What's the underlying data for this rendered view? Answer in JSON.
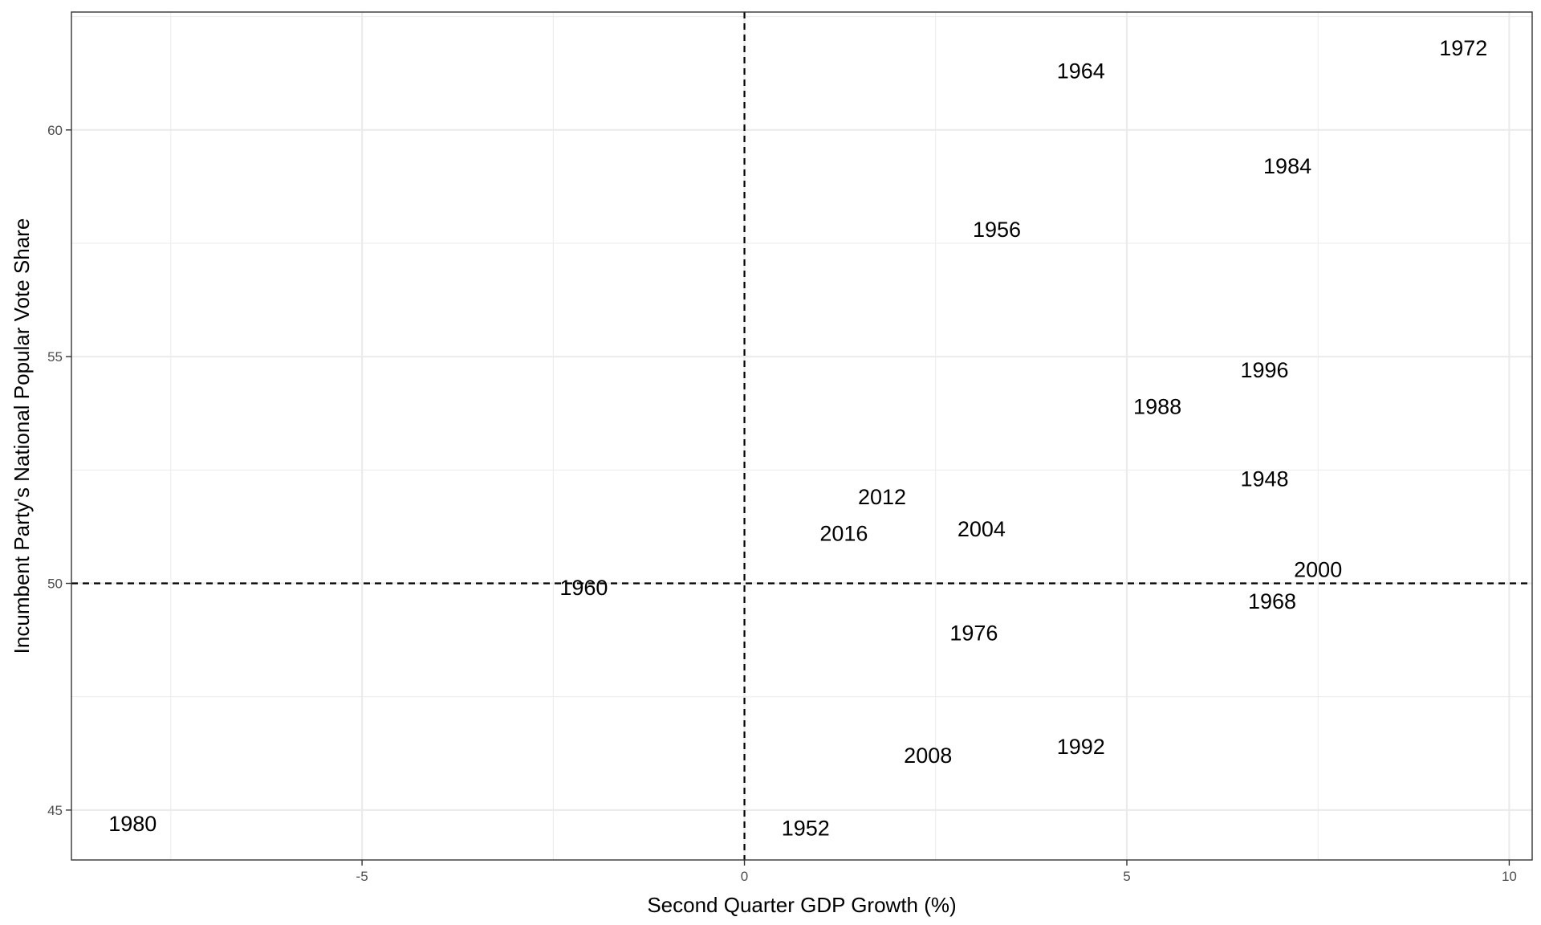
{
  "chart_data": {
    "type": "scatter",
    "title": "",
    "xlabel": "Second Quarter GDP Growth (%)",
    "ylabel": "Incumbent Party's National Popular Vote Share",
    "xlim": [
      -8.8,
      10.3
    ],
    "ylim": [
      43.9,
      62.6
    ],
    "x_ticks": [
      -5,
      0,
      5,
      10
    ],
    "y_ticks": [
      45,
      50,
      55,
      60
    ],
    "x_tick_labels": [
      "-5",
      "0",
      "5",
      "10"
    ],
    "y_tick_labels": [
      "45",
      "50",
      "55",
      "60"
    ],
    "grid": true,
    "reference_lines": {
      "x": 0,
      "y": 50
    },
    "points": [
      {
        "label": "1948",
        "x": 6.8,
        "y": 52.3
      },
      {
        "label": "1952",
        "x": 0.8,
        "y": 44.6
      },
      {
        "label": "1956",
        "x": 3.3,
        "y": 57.8
      },
      {
        "label": "1960",
        "x": -2.1,
        "y": 49.9
      },
      {
        "label": "1964",
        "x": 4.4,
        "y": 61.3
      },
      {
        "label": "1968",
        "x": 6.9,
        "y": 49.6
      },
      {
        "label": "1972",
        "x": 9.4,
        "y": 61.8
      },
      {
        "label": "1976",
        "x": 3.0,
        "y": 48.9
      },
      {
        "label": "1980",
        "x": -8.0,
        "y": 44.7
      },
      {
        "label": "1984",
        "x": 7.1,
        "y": 59.2
      },
      {
        "label": "1988",
        "x": 5.4,
        "y": 53.9
      },
      {
        "label": "1992",
        "x": 4.4,
        "y": 46.4
      },
      {
        "label": "1996",
        "x": 6.8,
        "y": 54.7
      },
      {
        "label": "2000",
        "x": 7.5,
        "y": 50.3
      },
      {
        "label": "2004",
        "x": 3.1,
        "y": 51.2
      },
      {
        "label": "2008",
        "x": 2.4,
        "y": 46.2
      },
      {
        "label": "2012",
        "x": 1.8,
        "y": 51.9
      },
      {
        "label": "2016",
        "x": 1.3,
        "y": 51.1
      }
    ]
  }
}
